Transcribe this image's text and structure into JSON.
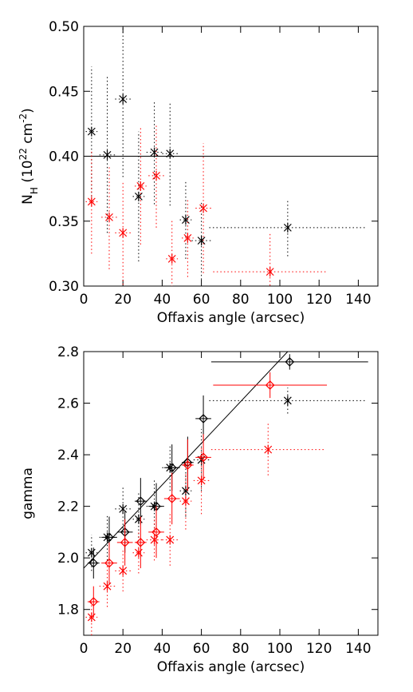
{
  "chart_data": [
    {
      "type": "errorbar-scatter",
      "xlabel": "Offaxis angle (arcsec)",
      "ylabel": [
        {
          "text": "N"
        },
        {
          "text": "H",
          "script": "sub"
        },
        {
          "text": " (10"
        },
        {
          "text": "22",
          "script": "super"
        },
        {
          "text": " cm"
        },
        {
          "text": "-2",
          "script": "super"
        },
        {
          "text": ")"
        }
      ],
      "xlim": [
        0,
        150
      ],
      "xticks": [
        0,
        20,
        40,
        60,
        80,
        100,
        120,
        140
      ],
      "ylim": [
        0.3,
        0.5
      ],
      "yticks": [
        {
          "value": 0.3,
          "label": "0.30"
        },
        0.35,
        {
          "value": 0.4,
          "label": "0.40"
        },
        0.45,
        {
          "value": 0.5,
          "label": "0.50"
        }
      ],
      "hlines": [
        0.4
      ],
      "series": [
        {
          "color": "#000000",
          "marker": "asterisk",
          "linestyle": "dotted",
          "x": [
            4,
            12,
            20,
            28,
            36,
            44,
            52,
            60,
            104
          ],
          "xerr": [
            3,
            4,
            4,
            3,
            4,
            4,
            3,
            5,
            40
          ],
          "values": [
            0.419,
            0.401,
            0.444,
            0.369,
            0.403,
            0.402,
            0.351,
            0.335,
            0.345
          ],
          "yerr": [
            0.05,
            0.06,
            0.06,
            0.05,
            0.04,
            0.04,
            0.03,
            0.03,
            0.022
          ]
        },
        {
          "color": "#ff0000",
          "marker": "asterisk",
          "linestyle": "dotted",
          "x": [
            4,
            13,
            20,
            29,
            37,
            45,
            53,
            61,
            95
          ],
          "xerr": [
            3,
            4,
            4,
            3,
            4,
            3,
            3,
            4,
            29
          ],
          "values": [
            0.365,
            0.353,
            0.341,
            0.377,
            0.385,
            0.321,
            0.337,
            0.36,
            0.311
          ],
          "yerr": [
            0.04,
            0.04,
            0.04,
            0.045,
            0.04,
            0.03,
            0.03,
            0.05,
            0.03
          ]
        }
      ]
    },
    {
      "type": "errorbar-scatter",
      "xlabel": "Offaxis angle (arcsec)",
      "ylabel": [
        {
          "text": "gamma"
        }
      ],
      "xlim": [
        0,
        150
      ],
      "xticks": [
        0,
        20,
        40,
        60,
        80,
        100,
        120,
        140
      ],
      "ylim": [
        1.7,
        2.8
      ],
      "yticks": [
        1.8,
        {
          "value": 2,
          "label": "2.0"
        },
        2.2,
        2.4,
        2.6,
        2.8
      ],
      "lines": [
        {
          "color": "#000000",
          "x": [
            0,
            104
          ],
          "values": [
            1.96,
            2.8
          ]
        }
      ],
      "series": [
        {
          "color": "#000000",
          "marker": "asterisk",
          "linestyle": "dotted",
          "x": [
            4,
            12,
            20,
            28,
            36,
            44,
            52,
            60,
            104
          ],
          "xerr": [
            3,
            4,
            4,
            3,
            4,
            4,
            3,
            4,
            40
          ],
          "values": [
            2.02,
            2.08,
            2.19,
            2.15,
            2.2,
            2.35,
            2.26,
            2.38,
            2.61
          ],
          "yerr": [
            0.07,
            0.09,
            0.09,
            0.1,
            0.1,
            0.09,
            0.1,
            0.12,
            0.05
          ]
        },
        {
          "color": "#000000",
          "marker": "diamond",
          "linestyle": "solid",
          "x": [
            5,
            13,
            21,
            29,
            37,
            45,
            53,
            61,
            105
          ],
          "xerr": [
            3,
            4,
            4,
            3,
            4,
            4,
            3,
            4,
            40
          ],
          "values": [
            1.98,
            2.08,
            2.1,
            2.22,
            2.2,
            2.35,
            2.37,
            2.54,
            2.76
          ],
          "yerr": [
            0.06,
            0.08,
            0.08,
            0.09,
            0.09,
            0.09,
            0.1,
            0.09,
            0.03
          ]
        },
        {
          "color": "#ff0000",
          "marker": "asterisk",
          "linestyle": "dotted",
          "x": [
            4,
            12,
            20,
            28,
            36,
            44,
            52,
            60,
            94
          ],
          "xerr": [
            3,
            4,
            4,
            3,
            4,
            4,
            3,
            4,
            29
          ],
          "values": [
            1.77,
            1.89,
            1.95,
            2.02,
            2.07,
            2.07,
            2.22,
            2.3,
            2.42
          ],
          "yerr": [
            0.07,
            0.08,
            0.08,
            0.08,
            0.08,
            0.1,
            0.11,
            0.13,
            0.1
          ]
        },
        {
          "color": "#ff0000",
          "marker": "diamond",
          "linestyle": "solid",
          "x": [
            5,
            13,
            21,
            29,
            37,
            45,
            53,
            61,
            95
          ],
          "xerr": [
            3,
            4,
            4,
            3,
            4,
            4,
            3,
            4,
            29
          ],
          "values": [
            1.83,
            1.98,
            2.06,
            2.06,
            2.1,
            2.23,
            2.36,
            2.39,
            2.67
          ],
          "yerr": [
            0.06,
            0.08,
            0.09,
            0.1,
            0.1,
            0.1,
            0.1,
            0.09,
            0.05
          ]
        }
      ]
    }
  ]
}
